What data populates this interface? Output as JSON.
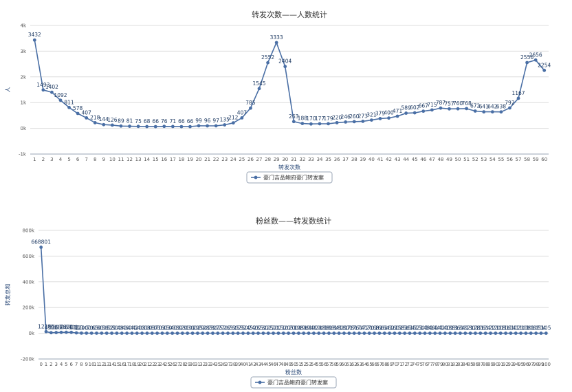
{
  "chart_data": [
    {
      "type": "line",
      "title": "转发次数——人数统计",
      "xlabel": "转发次数",
      "ylabel": "人",
      "ylim": [
        -1000,
        4000
      ],
      "yticks": [
        -1000,
        0,
        1000,
        2000,
        3000,
        4000
      ],
      "ytick_labels": [
        "-1k",
        "0k",
        "1k",
        "2k",
        "3k",
        "4k"
      ],
      "grid": true,
      "legend_position": "bottom-center",
      "color": "#4a6fa5",
      "categories": [
        "1",
        "2",
        "3",
        "4",
        "5",
        "6",
        "7",
        "8",
        "9",
        "10",
        "11",
        "12",
        "13",
        "14",
        "15",
        "16",
        "17",
        "18",
        "19",
        "20",
        "21",
        "22",
        "23",
        "24",
        "25",
        "26",
        "27",
        "28",
        "29",
        "30",
        "31",
        "32",
        "33",
        "34",
        "35",
        "36",
        "37",
        "38",
        "39",
        "40",
        "41",
        "42",
        "43",
        "44",
        "45",
        "46",
        "47",
        "48",
        "49",
        "50",
        "51",
        "52",
        "53",
        "54",
        "55",
        "56",
        "57",
        "58",
        "59",
        "60"
      ],
      "series": [
        {
          "name": "豪门吉品鲍府豪门转发案",
          "values": [
            3432,
            1493,
            1402,
            1092,
            811,
            578,
            407,
            218,
            144,
            126,
            89,
            81,
            75,
            68,
            66,
            76,
            71,
            66,
            66,
            99,
            96,
            97,
            135,
            212,
            407,
            785,
            1545,
            2552,
            3333,
            2404,
            263,
            188,
            170,
            177,
            179,
            220,
            246,
            260,
            273,
            321,
            379,
            400,
            471,
            589,
            602,
            667,
            715,
            787,
            757,
            760,
            768,
            672,
            641,
            642,
            638,
            792,
            1167,
            2556,
            2656,
            2254
          ]
        }
      ]
    },
    {
      "type": "line",
      "title": "粉丝数——转发数统计",
      "xlabel": "粉丝数",
      "ylabel": "转发总和",
      "ylim": [
        -200000,
        800000
      ],
      "yticks": [
        -200000,
        0,
        200000,
        400000,
        600000,
        800000
      ],
      "ytick_labels": [
        "-200k",
        "0k",
        "200k",
        "400k",
        "600k",
        "800k"
      ],
      "grid": true,
      "legend_position": "bottom-center",
      "color": "#4a6fa5",
      "categories_note_hidden": "",
      "xtick_first": "0",
      "xtick_last": "100",
      "series": [
        {
          "name": "豪门吉品鲍府豪门转发案",
          "first_label": "668801",
          "second_label": "12386",
          "values": [
            668801,
            12386,
            4500,
            5600,
            6800,
            7600,
            6900,
            3100,
            1200,
            900,
            700,
            650,
            600,
            560,
            520,
            500,
            480,
            460,
            440,
            420,
            400,
            390,
            380,
            370,
            360,
            350,
            340,
            330,
            320,
            310,
            300,
            295,
            290,
            285,
            280,
            275,
            270,
            265,
            260,
            255,
            250,
            245,
            240,
            235,
            230,
            225,
            220,
            215,
            210,
            205,
            200,
            198,
            196,
            194,
            192,
            190,
            188,
            186,
            184,
            182,
            180,
            178,
            176,
            174,
            172,
            170,
            168,
            166,
            164,
            162,
            160,
            158,
            156,
            154,
            152,
            150,
            148,
            146,
            144,
            142,
            140,
            138,
            136,
            134,
            132,
            130,
            128,
            126,
            124,
            122,
            120,
            118,
            116,
            114,
            112,
            110,
            108,
            106,
            105,
            104,
            105
          ]
        }
      ]
    }
  ]
}
